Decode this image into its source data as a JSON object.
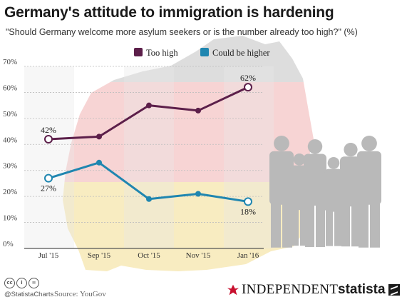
{
  "title": "Germany's attitude to immigration is hardening",
  "subtitle": "\"Should Germany welcome more asylum seekers or is the number already too high?\" (%)",
  "chart_data": {
    "type": "line",
    "x": [
      "Jul '15",
      "Sep '15",
      "Oct '15",
      "Nov '15",
      "Jan '16"
    ],
    "series": [
      {
        "name": "Too high",
        "values": [
          42,
          43,
          55,
          53,
          62
        ],
        "color": "#5c1f4a"
      },
      {
        "name": "Could be higher",
        "values": [
          27,
          33,
          19,
          21,
          18
        ],
        "color": "#1f86b0"
      }
    ],
    "ylim": [
      0,
      70
    ],
    "yticks": [
      "0%",
      "10%",
      "20%",
      "30%",
      "40%",
      "50%",
      "60%",
      "70%"
    ],
    "data_labels": [
      {
        "series": 0,
        "index": 0,
        "text": "42%"
      },
      {
        "series": 0,
        "index": 4,
        "text": "62%"
      },
      {
        "series": 1,
        "index": 0,
        "text": "27%"
      },
      {
        "series": 1,
        "index": 4,
        "text": "18%"
      }
    ],
    "legend": "top-center",
    "grid": true
  },
  "footer": {
    "handle": "@StatistaCharts",
    "source": "Source: YouGov",
    "independent": "INDEPENDENT",
    "statista": "statista",
    "cc_icons": [
      "cc-icon",
      "attribution-icon",
      "no-derivatives-icon"
    ]
  },
  "colors": {
    "too_high": "#5c1f4a",
    "could_be_higher": "#1f86b0",
    "independent_red": "#c8102e"
  }
}
